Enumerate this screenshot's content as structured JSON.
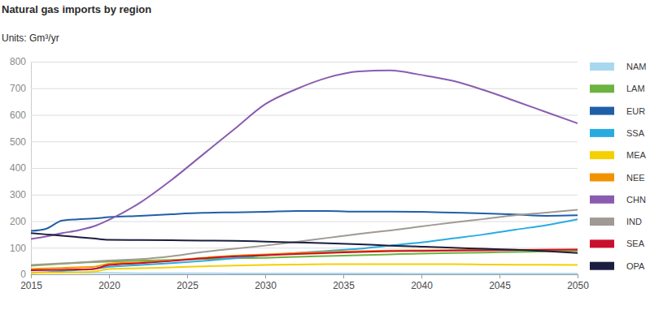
{
  "chart_data": {
    "type": "line",
    "title": "Natural gas imports by region",
    "subtitle": "Units: Gm³/yr",
    "x": [
      2015,
      2016,
      2017,
      2018,
      2019,
      2020,
      2022,
      2024,
      2026,
      2028,
      2030,
      2032,
      2034,
      2036,
      2038,
      2040,
      2042,
      2044,
      2046,
      2048,
      2050
    ],
    "xlim": [
      2015,
      2050
    ],
    "xticks": [
      2015,
      2020,
      2025,
      2030,
      2035,
      2040,
      2045,
      2050
    ],
    "ylim": [
      0,
      800
    ],
    "yticks": [
      0,
      100,
      200,
      300,
      400,
      500,
      600,
      700,
      800
    ],
    "grid": true,
    "legend": "right",
    "series": [
      {
        "name": "NAM",
        "color": "#a8d8f0",
        "values": [
          8,
          7,
          6,
          6,
          5,
          5,
          4,
          4,
          4,
          3,
          3,
          3,
          3,
          3,
          3,
          2,
          2,
          2,
          2,
          2,
          2
        ]
      },
      {
        "name": "LAM",
        "color": "#6cb33f",
        "values": [
          32,
          36,
          40,
          43,
          46,
          48,
          51,
          54,
          57,
          60,
          62,
          66,
          69,
          72,
          75,
          78,
          80,
          82,
          84,
          86,
          88
        ]
      },
      {
        "name": "EUR",
        "color": "#1f5fa8",
        "values": [
          163,
          172,
          202,
          207,
          210,
          215,
          220,
          226,
          231,
          233,
          235,
          238,
          238,
          236,
          236,
          235,
          232,
          229,
          225,
          220,
          222
        ]
      },
      {
        "name": "SSA",
        "color": "#29abe2",
        "values": [
          5,
          8,
          12,
          16,
          20,
          28,
          35,
          42,
          50,
          60,
          72,
          80,
          88,
          96,
          108,
          120,
          135,
          150,
          168,
          185,
          207
        ]
      },
      {
        "name": "MEA",
        "color": "#f5d000",
        "values": [
          5,
          6,
          7,
          8,
          10,
          20,
          23,
          26,
          30,
          33,
          35,
          37,
          38,
          38,
          38,
          38,
          38,
          37,
          36,
          36,
          35
        ]
      },
      {
        "name": "NEE",
        "color": "#f39200",
        "values": [
          20,
          22,
          24,
          26,
          28,
          40,
          45,
          52,
          62,
          70,
          75,
          80,
          84,
          87,
          89,
          90,
          91,
          92,
          92,
          92,
          92
        ]
      },
      {
        "name": "CHN",
        "color": "#8a5cb0",
        "values": [
          133,
          143,
          155,
          165,
          180,
          205,
          270,
          355,
          450,
          545,
          640,
          697,
          740,
          763,
          767,
          750,
          728,
          693,
          652,
          610,
          568
        ]
      },
      {
        "name": "IND",
        "color": "#a09a94",
        "values": [
          35,
          38,
          41,
          44,
          48,
          52,
          57,
          68,
          84,
          96,
          108,
          122,
          137,
          152,
          165,
          180,
          195,
          208,
          222,
          232,
          243
        ]
      },
      {
        "name": "SEA",
        "color": "#c8102e",
        "values": [
          15,
          16,
          17,
          18,
          20,
          35,
          42,
          50,
          60,
          67,
          72,
          76,
          80,
          84,
          87,
          88,
          89,
          90,
          91,
          92,
          93
        ]
      },
      {
        "name": "OPA",
        "color": "#1a1f40",
        "values": [
          155,
          150,
          145,
          140,
          135,
          130,
          129,
          128,
          127,
          126,
          123,
          120,
          117,
          113,
          108,
          104,
          100,
          96,
          92,
          87,
          80
        ]
      }
    ]
  }
}
